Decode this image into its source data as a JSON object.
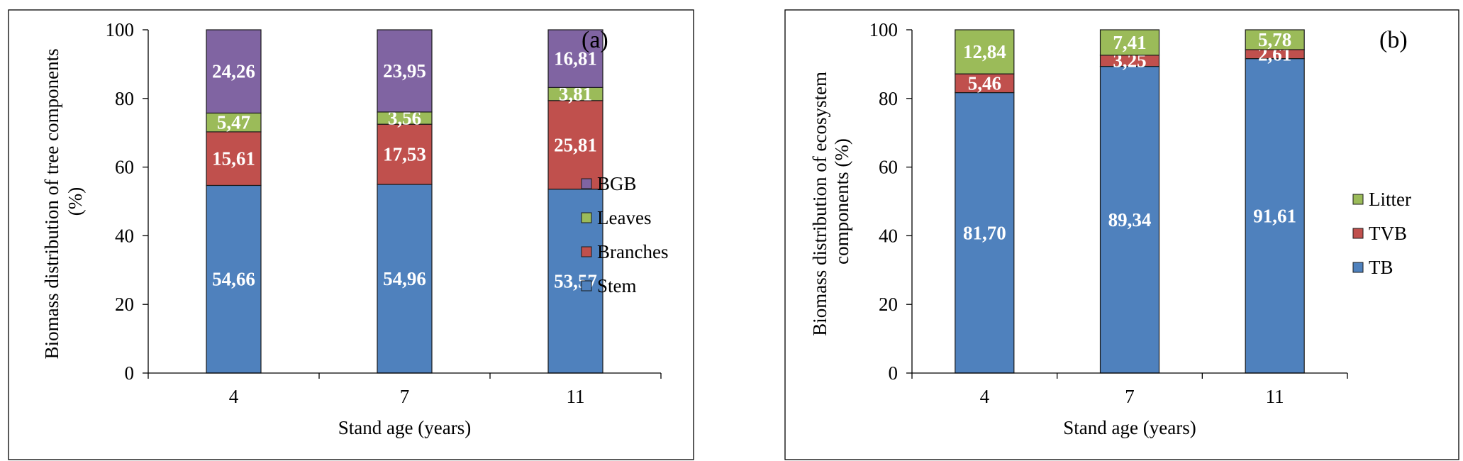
{
  "chart_data": [
    {
      "type": "bar",
      "stacked": true,
      "panel_tag": "(a)",
      "categories": [
        "4",
        "7",
        "11"
      ],
      "xlabel": "Stand age (years)",
      "ylabel_lines": [
        "Biomass  distribution of tree components",
        "(%)"
      ],
      "ylim": [
        0,
        100
      ],
      "yticks": [
        "0",
        "20",
        "40",
        "60",
        "80",
        "100"
      ],
      "legend_placement": "right",
      "series": [
        {
          "name": "Stem",
          "color": "#4f81bd",
          "values": [
            54.66,
            54.96,
            53.57
          ],
          "labels": [
            "54,66",
            "54,96",
            "53,57"
          ]
        },
        {
          "name": "Branches",
          "color": "#c0504d",
          "values": [
            15.61,
            17.53,
            25.81
          ],
          "labels": [
            "15,61",
            "17,53",
            "25,81"
          ]
        },
        {
          "name": "Leaves",
          "color": "#9bbb59",
          "values": [
            5.47,
            3.56,
            3.81
          ],
          "labels": [
            "5,47",
            "3,56",
            "3,81"
          ]
        },
        {
          "name": "BGB",
          "color": "#8064a2",
          "values": [
            24.26,
            23.95,
            16.81
          ],
          "labels": [
            "24,26",
            "23,95",
            "16,81"
          ]
        }
      ]
    },
    {
      "type": "bar",
      "stacked": true,
      "panel_tag": "(b)",
      "categories": [
        "4",
        "7",
        "11"
      ],
      "xlabel": "Stand age (years)",
      "ylabel_lines": [
        "Biomass  distribution of ecosystem",
        "components (%)"
      ],
      "ylim": [
        0,
        100
      ],
      "yticks": [
        "0",
        "20",
        "40",
        "60",
        "80",
        "100"
      ],
      "legend_placement": "right",
      "series": [
        {
          "name": "TB",
          "color": "#4f81bd",
          "values": [
            81.7,
            89.34,
            91.61
          ],
          "labels": [
            "81,70",
            "89,34",
            "91,61"
          ]
        },
        {
          "name": "TVB",
          "color": "#c0504d",
          "values": [
            5.46,
            3.25,
            2.61
          ],
          "labels": [
            "5,46",
            "3,25",
            "2,61"
          ]
        },
        {
          "name": "Litter",
          "color": "#9bbb59",
          "values": [
            12.84,
            7.41,
            5.78
          ],
          "labels": [
            "12,84",
            "7,41",
            "5,78"
          ]
        }
      ]
    }
  ]
}
